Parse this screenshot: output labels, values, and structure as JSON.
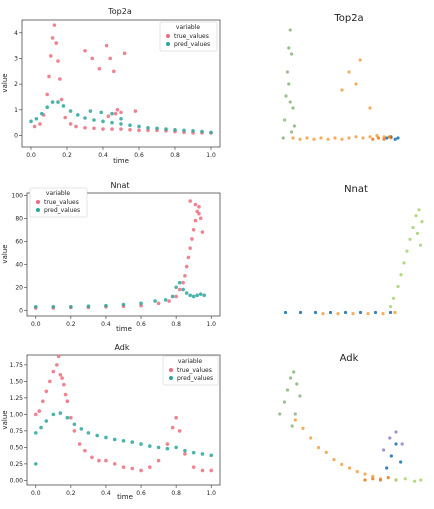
{
  "colors": {
    "true_values": "#ec6d7d",
    "pred_values": "#2aa79b",
    "embed_orange": "#f5a34c",
    "embed_green": "#8cba7f",
    "embed_blue": "#1f77b4",
    "embed_darkorange": "#f07c1a",
    "embed_lightgreen": "#a9d67a",
    "embed_purple": "#9a84c8"
  },
  "chart_data": [
    {
      "type": "scatter",
      "title": "Top2a",
      "xlabel": "time",
      "ylabel": "value",
      "xlim": [
        -0.05,
        1.05
      ],
      "ylim": [
        -0.45,
        4.5
      ],
      "xticks": [
        "0.0",
        "0.2",
        "0.4",
        "0.6",
        "0.8",
        "1.0"
      ],
      "xtick_values": [
        0.0,
        0.2,
        0.4,
        0.6,
        0.8,
        1.0
      ],
      "yticks": [
        "0",
        "1",
        "2",
        "3",
        "4"
      ],
      "ytick_values": [
        0,
        1,
        2,
        3,
        4
      ],
      "legend": {
        "title": "variable",
        "position": "upper right",
        "entries": [
          "true_values",
          "pred_values"
        ]
      },
      "series": [
        {
          "name": "true_values",
          "color": "#ec6d7d",
          "x": [
            0.02,
            0.05,
            0.07,
            0.09,
            0.1,
            0.11,
            0.12,
            0.13,
            0.14,
            0.15,
            0.16,
            0.17,
            0.19,
            0.22,
            0.25,
            0.3,
            0.35,
            0.4,
            0.45,
            0.5,
            0.55,
            0.6,
            0.65,
            0.7,
            0.75,
            0.8,
            0.85,
            0.9,
            0.95,
            1.0,
            0.3,
            0.34,
            0.38,
            0.42,
            0.44,
            0.46,
            0.48,
            0.5,
            0.52,
            0.43,
            0.47,
            0.58
          ],
          "y": [
            0.35,
            0.45,
            0.8,
            1.6,
            2.3,
            3.1,
            3.8,
            4.3,
            3.6,
            2.9,
            2.2,
            1.4,
            0.7,
            0.45,
            0.35,
            0.3,
            0.28,
            0.25,
            0.25,
            0.25,
            0.22,
            0.2,
            0.2,
            0.2,
            0.18,
            0.15,
            0.12,
            0.1,
            0.1,
            0.1,
            3.3,
            3.0,
            2.6,
            3.5,
            3.0,
            2.5,
            1.0,
            0.9,
            3.2,
            0.75,
            0.85,
            0.95
          ]
        },
        {
          "name": "pred_values",
          "color": "#2aa79b",
          "x": [
            0.0,
            0.03,
            0.06,
            0.09,
            0.12,
            0.15,
            0.18,
            0.22,
            0.26,
            0.3,
            0.35,
            0.4,
            0.45,
            0.5,
            0.55,
            0.6,
            0.65,
            0.7,
            0.75,
            0.8,
            0.85,
            0.9,
            0.95,
            1.0,
            0.33,
            0.39,
            0.45,
            0.5
          ],
          "y": [
            0.55,
            0.65,
            0.85,
            1.1,
            1.3,
            1.3,
            1.15,
            0.95,
            0.8,
            0.68,
            0.6,
            0.55,
            0.5,
            0.45,
            0.4,
            0.35,
            0.3,
            0.28,
            0.25,
            0.22,
            0.2,
            0.18,
            0.15,
            0.12,
            0.95,
            0.9,
            0.85,
            0.65
          ]
        }
      ]
    },
    {
      "type": "scatter",
      "title": "Nnat",
      "xlabel": "time",
      "ylabel": "value",
      "xlim": [
        -0.05,
        1.05
      ],
      "ylim": [
        -5,
        102
      ],
      "xticks": [
        "0.0",
        "0.2",
        "0.4",
        "0.6",
        "0.8",
        "1.0"
      ],
      "xtick_values": [
        0.0,
        0.2,
        0.4,
        0.6,
        0.8,
        1.0
      ],
      "yticks": [
        "0",
        "20",
        "40",
        "60",
        "80",
        "100"
      ],
      "ytick_values": [
        0,
        20,
        40,
        60,
        80,
        100
      ],
      "legend": {
        "title": "variable",
        "position": "upper left",
        "entries": [
          "true_values",
          "pred_values"
        ]
      },
      "series": [
        {
          "name": "true_values",
          "color": "#ec6d7d",
          "x": [
            0.0,
            0.1,
            0.2,
            0.3,
            0.4,
            0.5,
            0.6,
            0.7,
            0.76,
            0.8,
            0.82,
            0.84,
            0.85,
            0.86,
            0.87,
            0.88,
            0.89,
            0.9,
            0.91,
            0.92,
            0.93,
            0.94,
            0.95,
            0.88,
            0.91,
            0.93
          ],
          "y": [
            2,
            2,
            2.5,
            2.5,
            3,
            3.5,
            4,
            6,
            8,
            12,
            18,
            24,
            30,
            38,
            46,
            54,
            62,
            70,
            78,
            86,
            90,
            80,
            68,
            95,
            92,
            84
          ]
        },
        {
          "name": "pred_values",
          "color": "#2aa79b",
          "x": [
            0.0,
            0.1,
            0.2,
            0.3,
            0.4,
            0.5,
            0.6,
            0.68,
            0.74,
            0.78,
            0.8,
            0.82,
            0.84,
            0.86,
            0.88,
            0.9,
            0.92,
            0.94,
            0.96
          ],
          "y": [
            3,
            3,
            3,
            3.5,
            4,
            5,
            6,
            8,
            9,
            12,
            20,
            24,
            18,
            15,
            13,
            12,
            13,
            14,
            13
          ]
        }
      ]
    },
    {
      "type": "scatter",
      "title": "Adk",
      "xlabel": "time",
      "ylabel": "value",
      "xlim": [
        -0.05,
        1.05
      ],
      "ylim": [
        -0.07,
        1.9
      ],
      "xticks": [
        "0.0",
        "0.2",
        "0.4",
        "0.6",
        "0.8",
        "1.0"
      ],
      "xtick_values": [
        0.0,
        0.2,
        0.4,
        0.6,
        0.8,
        1.0
      ],
      "yticks": [
        "0.00",
        "0.25",
        "0.50",
        "0.75",
        "1.00",
        "1.25",
        "1.50",
        "1.75"
      ],
      "ytick_values": [
        0,
        0.25,
        0.5,
        0.75,
        1.0,
        1.25,
        1.5,
        1.75
      ],
      "legend": {
        "title": "variable",
        "position": "upper right",
        "entries": [
          "true_values",
          "pred_values"
        ]
      },
      "series": [
        {
          "name": "true_values",
          "color": "#ec6d7d",
          "x": [
            0.0,
            0.02,
            0.04,
            0.06,
            0.08,
            0.1,
            0.12,
            0.14,
            0.16,
            0.18,
            0.2,
            0.22,
            0.25,
            0.28,
            0.32,
            0.36,
            0.4,
            0.45,
            0.5,
            0.55,
            0.6,
            0.65,
            0.7,
            0.75,
            0.78,
            0.8,
            0.82,
            0.85,
            0.9,
            0.95,
            1.0,
            0.13,
            0.15,
            0.17
          ],
          "y": [
            1.0,
            1.05,
            1.2,
            1.35,
            1.5,
            1.65,
            1.75,
            1.6,
            1.45,
            1.2,
            0.95,
            0.75,
            0.55,
            0.45,
            0.35,
            0.3,
            0.3,
            0.25,
            0.2,
            0.18,
            0.15,
            0.2,
            0.3,
            0.55,
            0.8,
            0.95,
            0.75,
            0.4,
            0.2,
            0.15,
            0.15,
            1.88,
            1.55,
            1.3
          ]
        },
        {
          "name": "pred_values",
          "color": "#2aa79b",
          "x": [
            0.0,
            0.03,
            0.06,
            0.1,
            0.14,
            0.18,
            0.22,
            0.26,
            0.3,
            0.35,
            0.4,
            0.45,
            0.5,
            0.55,
            0.6,
            0.65,
            0.7,
            0.75,
            0.8,
            0.85,
            0.9,
            0.95,
            1.0,
            0.0
          ],
          "y": [
            0.72,
            0.8,
            0.9,
            1.0,
            1.02,
            0.95,
            0.85,
            0.78,
            0.72,
            0.68,
            0.65,
            0.62,
            0.6,
            0.58,
            0.55,
            0.52,
            0.5,
            0.48,
            0.5,
            0.45,
            0.42,
            0.4,
            0.38,
            0.25
          ]
        }
      ]
    },
    {
      "type": "scatter",
      "title": "Top2a",
      "axes": "off",
      "series": [
        {
          "color": "#8cba7f",
          "x": [
            0.08,
            0.09,
            0.1,
            0.11,
            0.12,
            0.13,
            0.14,
            0.12,
            0.15,
            0.16,
            0.13,
            0.14
          ],
          "y": [
            0.05,
            0.2,
            0.4,
            0.6,
            0.8,
            0.95,
            0.75,
            0.5,
            0.3,
            0.15,
            0.35,
            0.1
          ]
        },
        {
          "color": "#f5a34c",
          "x": [
            0.15,
            0.2,
            0.25,
            0.3,
            0.35,
            0.4,
            0.45,
            0.5,
            0.55,
            0.6,
            0.65,
            0.7,
            0.75,
            0.8,
            0.85,
            0.5,
            0.55,
            0.6,
            0.63,
            0.7
          ],
          "y": [
            0.05,
            0.04,
            0.05,
            0.04,
            0.05,
            0.04,
            0.05,
            0.04,
            0.05,
            0.06,
            0.05,
            0.06,
            0.07,
            0.06,
            0.05,
            0.45,
            0.6,
            0.5,
            0.7,
            0.3
          ]
        },
        {
          "color": "#1f77b4",
          "x": [
            0.82,
            0.85,
            0.88,
            0.9
          ],
          "y": [
            0.05,
            0.06,
            0.04,
            0.05
          ]
        },
        {
          "color": "#f07c1a",
          "x": [
            0.72,
            0.76,
            0.8,
            0.84
          ],
          "y": [
            0.04,
            0.05,
            0.04,
            0.06
          ]
        }
      ]
    },
    {
      "type": "scatter",
      "title": "Nnat",
      "axes": "off",
      "series": [
        {
          "color": "#1f77b4",
          "x": [
            0.05,
            0.15,
            0.25,
            0.35,
            0.45,
            0.55,
            0.65,
            0.75
          ],
          "y": [
            0.03,
            0.03,
            0.03,
            0.03,
            0.03,
            0.03,
            0.03,
            0.03
          ]
        },
        {
          "color": "#f5a34c",
          "x": [
            0.3,
            0.4,
            0.5,
            0.6,
            0.7,
            0.78
          ],
          "y": [
            0.02,
            0.02,
            0.02,
            0.02,
            0.02,
            0.03
          ]
        },
        {
          "color": "#a9d67a",
          "x": [
            0.75,
            0.77,
            0.8,
            0.82,
            0.84,
            0.86,
            0.88,
            0.9,
            0.92,
            0.94,
            0.96,
            0.93,
            0.95
          ],
          "y": [
            0.08,
            0.15,
            0.25,
            0.35,
            0.45,
            0.55,
            0.65,
            0.75,
            0.85,
            0.9,
            0.8,
            0.7,
            0.6
          ]
        }
      ]
    },
    {
      "type": "scatter",
      "title": "Adk",
      "axes": "off",
      "series": [
        {
          "color": "#8cba7f",
          "x": [
            0.05,
            0.08,
            0.1,
            0.12,
            0.14,
            0.16,
            0.18,
            0.15,
            0.13
          ],
          "y": [
            0.6,
            0.7,
            0.8,
            0.9,
            0.95,
            0.85,
            0.75,
            0.6,
            0.5
          ]
        },
        {
          "color": "#f5a34c",
          "x": [
            0.15,
            0.2,
            0.25,
            0.3,
            0.35,
            0.4,
            0.45,
            0.5,
            0.55,
            0.6,
            0.65,
            0.7
          ],
          "y": [
            0.55,
            0.48,
            0.4,
            0.32,
            0.28,
            0.22,
            0.18,
            0.15,
            0.12,
            0.1,
            0.08,
            0.06
          ]
        },
        {
          "color": "#f07c1a",
          "x": [
            0.6,
            0.65,
            0.7,
            0.75,
            0.8
          ],
          "y": [
            0.05,
            0.06,
            0.05,
            0.07,
            0.05
          ]
        },
        {
          "color": "#1f77b4",
          "x": [
            0.74,
            0.77,
            0.8,
            0.83
          ],
          "y": [
            0.15,
            0.25,
            0.35,
            0.2
          ]
        },
        {
          "color": "#9a84c8",
          "x": [
            0.72,
            0.76,
            0.8,
            0.84
          ],
          "y": [
            0.3,
            0.4,
            0.45,
            0.35
          ]
        },
        {
          "color": "#a9d67a",
          "x": [
            0.8,
            0.86,
            0.92,
            0.96
          ],
          "y": [
            0.05,
            0.06,
            0.04,
            0.05
          ]
        }
      ]
    }
  ]
}
